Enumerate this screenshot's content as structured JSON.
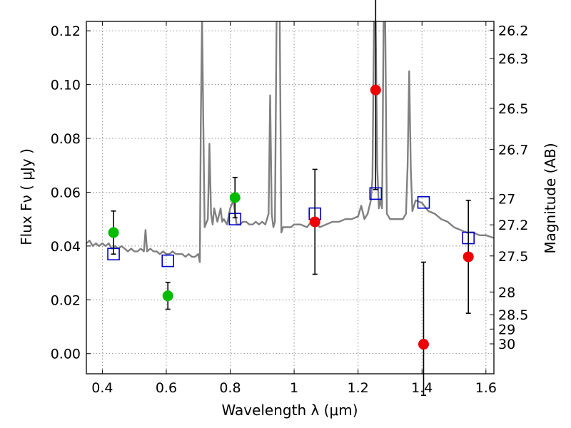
{
  "chart_data": {
    "type": "scatter",
    "xlabel": "Wavelength  λ (μm)",
    "ylabel": "Flux  Fν  ( μJy )",
    "y2label": "Magnitude (AB)",
    "xlim": [
      0.35,
      1.625
    ],
    "ylim": [
      -0.0075,
      0.1235
    ],
    "grid": true,
    "xticks": [
      0.4,
      0.6,
      0.8,
      1.0,
      1.2,
      1.4,
      1.6
    ],
    "xtick_labels": [
      "0.4",
      "0.6",
      "0.8",
      "1",
      "1.2",
      "1.4",
      "1.6"
    ],
    "yticks": [
      0.0,
      0.02,
      0.04,
      0.06,
      0.08,
      0.1,
      0.12
    ],
    "ytick_labels": [
      "0.00",
      "0.02",
      "0.04",
      "0.06",
      "0.08",
      "0.10",
      "0.12"
    ],
    "magnitude_ticks": [
      "26.2",
      "26.3",
      "26.5",
      "26.7",
      "27",
      "27.2",
      "27.5",
      "28",
      "28.5",
      "29",
      "30"
    ],
    "colors": {
      "spectrum": "#808080",
      "green_points": "#00bb00",
      "red_points": "#ee0000",
      "model_squares": "#0000cc",
      "errorbars": "#000000",
      "grid": "#888888"
    },
    "spectrum": {
      "x": [
        0.35,
        0.36,
        0.37,
        0.38,
        0.39,
        0.4,
        0.41,
        0.42,
        0.43,
        0.44,
        0.45,
        0.46,
        0.47,
        0.48,
        0.49,
        0.5,
        0.51,
        0.52,
        0.53,
        0.535,
        0.54,
        0.55,
        0.56,
        0.57,
        0.58,
        0.59,
        0.6,
        0.61,
        0.62,
        0.63,
        0.64,
        0.65,
        0.66,
        0.67,
        0.68,
        0.69,
        0.7,
        0.705,
        0.708,
        0.712,
        0.716,
        0.72,
        0.73,
        0.735,
        0.74,
        0.745,
        0.75,
        0.76,
        0.77,
        0.775,
        0.78,
        0.79,
        0.8,
        0.81,
        0.82,
        0.83,
        0.84,
        0.85,
        0.86,
        0.87,
        0.88,
        0.89,
        0.9,
        0.91,
        0.92,
        0.925,
        0.93,
        0.935,
        0.94,
        0.945,
        0.95,
        0.955,
        0.96,
        0.965,
        0.97,
        0.98,
        0.99,
        1.0,
        1.02,
        1.04,
        1.06,
        1.08,
        1.1,
        1.12,
        1.14,
        1.16,
        1.18,
        1.2,
        1.21,
        1.22,
        1.23,
        1.24,
        1.245,
        1.25,
        1.255,
        1.26,
        1.265,
        1.27,
        1.275,
        1.28,
        1.285,
        1.29,
        1.3,
        1.32,
        1.34,
        1.35,
        1.355,
        1.36,
        1.365,
        1.37,
        1.38,
        1.4,
        1.42,
        1.44,
        1.46,
        1.48,
        1.5,
        1.52,
        1.54,
        1.56,
        1.58,
        1.6,
        1.625
      ],
      "y": [
        0.041,
        0.042,
        0.04,
        0.041,
        0.04,
        0.041,
        0.04,
        0.041,
        0.039,
        0.04,
        0.039,
        0.04,
        0.039,
        0.038,
        0.039,
        0.038,
        0.038,
        0.039,
        0.038,
        0.046,
        0.038,
        0.039,
        0.038,
        0.038,
        0.037,
        0.038,
        0.037,
        0.037,
        0.038,
        0.037,
        0.037,
        0.037,
        0.036,
        0.037,
        0.036,
        0.036,
        0.037,
        0.034,
        0.085,
        0.125,
        0.085,
        0.047,
        0.05,
        0.078,
        0.052,
        0.048,
        0.054,
        0.049,
        0.054,
        0.049,
        0.05,
        0.048,
        0.054,
        0.057,
        0.048,
        0.048,
        0.049,
        0.049,
        0.048,
        0.048,
        0.049,
        0.048,
        0.049,
        0.048,
        0.052,
        0.096,
        0.052,
        0.047,
        0.049,
        0.125,
        0.125,
        0.125,
        0.045,
        0.047,
        0.047,
        0.047,
        0.047,
        0.048,
        0.048,
        0.047,
        0.05,
        0.047,
        0.048,
        0.049,
        0.049,
        0.05,
        0.05,
        0.051,
        0.055,
        0.05,
        0.052,
        0.057,
        0.065,
        0.125,
        0.125,
        0.07,
        0.054,
        0.057,
        0.054,
        0.125,
        0.125,
        0.052,
        0.05,
        0.05,
        0.05,
        0.052,
        0.07,
        0.105,
        0.068,
        0.053,
        0.057,
        0.056,
        0.053,
        0.052,
        0.05,
        0.049,
        0.047,
        0.046,
        0.045,
        0.045,
        0.044,
        0.044,
        0.043
      ]
    },
    "series": [
      {
        "marker": "green-circle",
        "x": [
          0.435,
          0.605,
          0.815
        ],
        "y": [
          0.045,
          0.0215,
          0.058
        ],
        "yerr": [
          0.008,
          0.005,
          0.0075
        ]
      },
      {
        "marker": "red-circle",
        "x": [
          1.065,
          1.255,
          1.405,
          1.545
        ],
        "y": [
          0.049,
          0.098,
          0.0035,
          0.036
        ],
        "yerr_low": [
          0.0195,
          0.037,
          0.019,
          0.021
        ],
        "yerr_high": [
          0.0195,
          0.037,
          0.0305,
          0.021
        ]
      },
      {
        "marker": "blue-square",
        "x": [
          0.435,
          0.605,
          0.815,
          1.065,
          1.255,
          1.405,
          1.545
        ],
        "y": [
          0.037,
          0.0345,
          0.05,
          0.052,
          0.0595,
          0.0562,
          0.043
        ]
      }
    ]
  }
}
